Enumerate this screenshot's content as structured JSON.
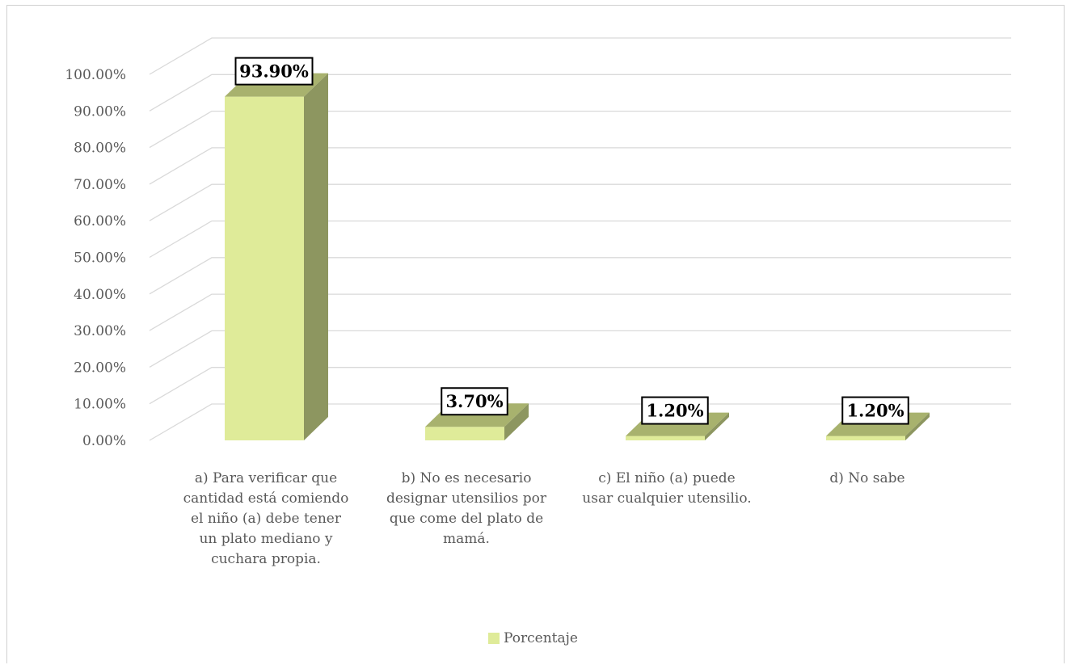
{
  "chart_data": {
    "type": "bar",
    "title": "",
    "xlabel": "",
    "ylabel": "",
    "categories": [
      "a) Para verificar que cantidad está comiendo el niño (a) debe tener un plato mediano y cuchara propia.",
      "b) No es necesario designar utensilios por que come del plato de mamá.",
      "c) El niño (a) puede usar cualquier utensilio.",
      "d) No sabe"
    ],
    "series": [
      {
        "name": "Porcentaje",
        "values": [
          93.9,
          3.7,
          1.2,
          1.2
        ]
      }
    ],
    "data_labels": [
      "93.90%",
      "3.70%",
      "1.20%",
      "1.20%"
    ],
    "yticks": [
      "0.00%",
      "10.00%",
      "20.00%",
      "30.00%",
      "40.00%",
      "50.00%",
      "60.00%",
      "70.00%",
      "80.00%",
      "90.00%",
      "100.00%"
    ],
    "ylim": [
      0,
      100
    ],
    "grid": true,
    "three_d": true,
    "legend_position": "bottom",
    "colors": {
      "bar_front": "#dfeb99",
      "bar_side": "#8d9660",
      "bar_top": "#a8b26e",
      "grid": "#d9d9d9",
      "axis_text": "#595959"
    }
  }
}
